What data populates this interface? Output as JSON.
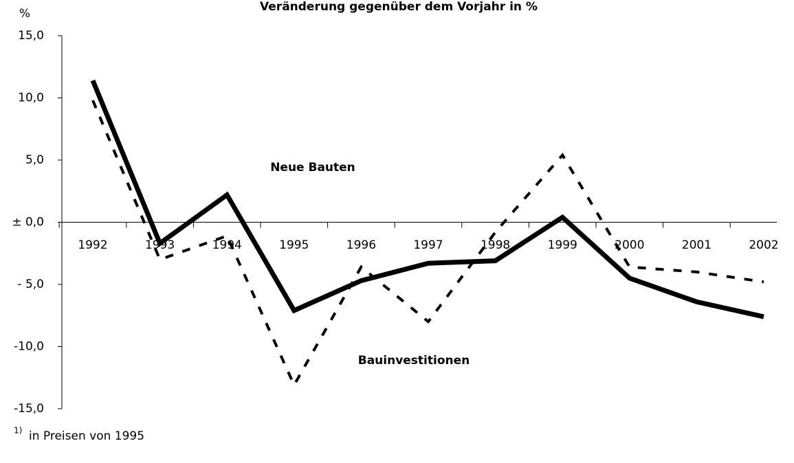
{
  "chart_data": {
    "type": "line",
    "title": "Veränderung gegenüber dem Vorjahr in %",
    "y_axis_label": "%",
    "categories": [
      "1992",
      "1993",
      "1994",
      "1995",
      "1996",
      "1997",
      "1998",
      "1999",
      "2000",
      "2001",
      "2002"
    ],
    "series": [
      {
        "name": "Bauinvestitionen",
        "color": "#000000",
        "style": "solid",
        "values": [
          11.4,
          -1.7,
          2.2,
          -7.1,
          -4.7,
          -3.3,
          -3.1,
          0.4,
          -4.5,
          -6.4,
          -7.6
        ]
      },
      {
        "name": "Neue Bauten",
        "color": "#000000",
        "style": "dashed",
        "values": [
          9.8,
          -3.0,
          -1.1,
          -13.1,
          -3.6,
          -8.0,
          -0.8,
          5.4,
          -3.6,
          -4.0,
          -4.8
        ]
      }
    ],
    "ylim": [
      -15,
      15
    ],
    "yticks": [
      {
        "value": 15,
        "label": "15,0"
      },
      {
        "value": 10,
        "label": "10,0"
      },
      {
        "value": 5,
        "label": "5,0"
      },
      {
        "value": 0,
        "label": "± 0,0"
      },
      {
        "value": -5,
        "label": "- 5,0"
      },
      {
        "value": -10,
        "label": "-10,0"
      },
      {
        "value": -15,
        "label": "-15,0"
      }
    ],
    "footnote": {
      "marker": "1)",
      "text": "in Preisen von 1995"
    }
  }
}
